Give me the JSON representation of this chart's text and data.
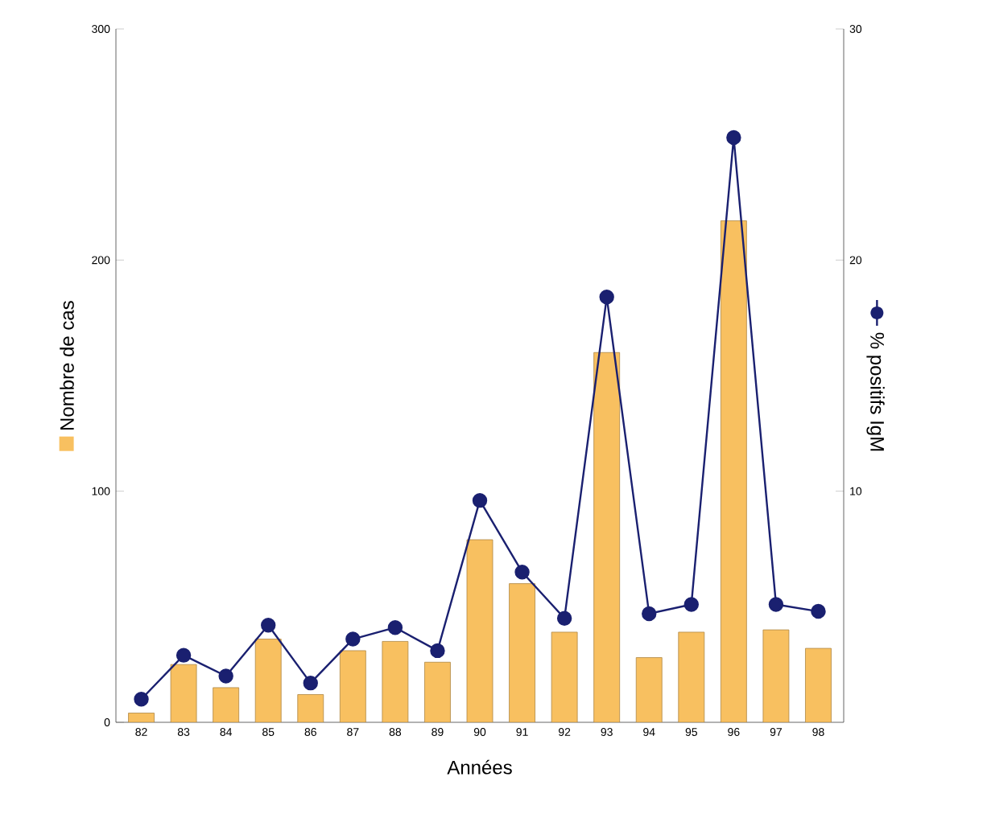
{
  "chart_data": {
    "type": "bar",
    "categories": [
      "82",
      "83",
      "84",
      "85",
      "86",
      "87",
      "88",
      "89",
      "90",
      "91",
      "92",
      "93",
      "94",
      "95",
      "96",
      "97",
      "98"
    ],
    "series": [
      {
        "color": "#f8c060",
        "values": [
          4,
          25,
          15,
          36,
          12,
          31,
          35,
          26,
          79,
          60,
          39,
          160,
          28,
          39,
          217,
          40,
          32
        ]
      },
      {
        "type": "line",
        "axis": "y2",
        "color": "#1a2070",
        "marker": "circle",
        "values": [
          1.0,
          2.9,
          2.0,
          4.2,
          1.7,
          3.6,
          4.1,
          3.1,
          9.6,
          6.5,
          4.5,
          18.4,
          4.7,
          5.1,
          25.3,
          5.1,
          4.8
        ]
      }
    ],
    "xlabel": "Années",
    "ylabel": "Nombre de cas",
    "y2label": "% positifs IgM",
    "ylim": [
      0,
      300
    ],
    "yticks": [
      0,
      100,
      200,
      300
    ],
    "y2lim": [
      0,
      30
    ],
    "y2ticks": [
      10,
      20,
      30
    ],
    "grid": false
  }
}
